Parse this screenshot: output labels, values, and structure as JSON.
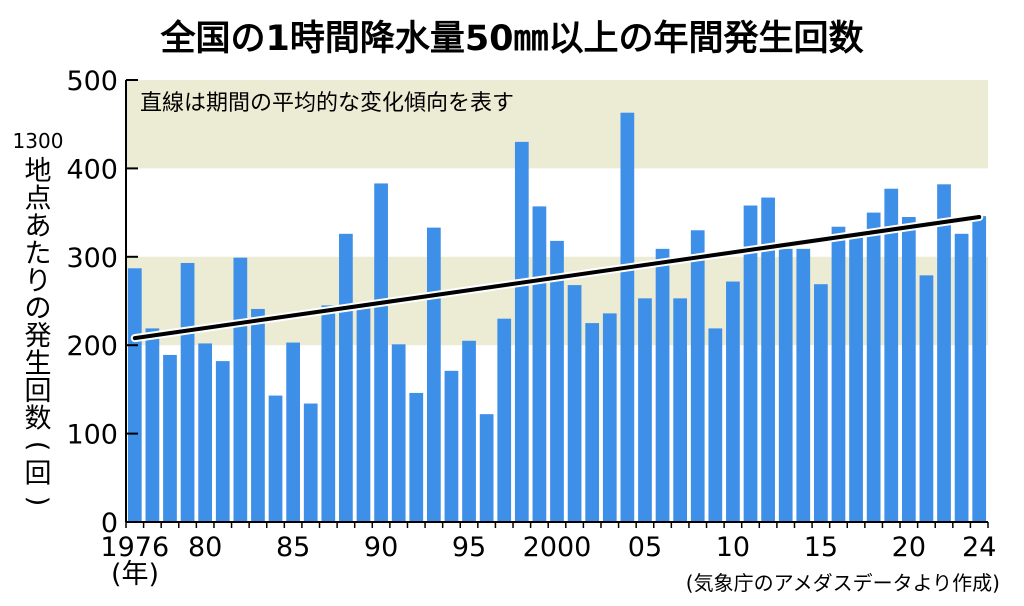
{
  "chart_data": {
    "type": "bar",
    "title": "全国の1時間降水量50㎜以上の年間発生回数",
    "ylabel_prefix": "1300",
    "ylabel_chars": [
      "地",
      "点",
      "あ",
      "た",
      "り",
      "の",
      "発",
      "生",
      "回",
      "数",
      "(",
      "回",
      ")"
    ],
    "xlabel": "(年)",
    "annotation": "直線は期間の平均的な変化傾向を表す",
    "source": "(気象庁のアメダスデータより作成)",
    "ylim": [
      0,
      500
    ],
    "yticks": [
      0,
      100,
      200,
      300,
      400,
      500
    ],
    "bands": [
      [
        200,
        300
      ],
      [
        400,
        500
      ]
    ],
    "x_tick_labels": [
      {
        "year": 1976,
        "label": "1976"
      },
      {
        "year": 1980,
        "label": "80"
      },
      {
        "year": 1985,
        "label": "85"
      },
      {
        "year": 1990,
        "label": "90"
      },
      {
        "year": 1995,
        "label": "95"
      },
      {
        "year": 2000,
        "label": "2000"
      },
      {
        "year": 2005,
        "label": "05"
      },
      {
        "year": 2010,
        "label": "10"
      },
      {
        "year": 2015,
        "label": "15"
      },
      {
        "year": 2020,
        "label": "20"
      },
      {
        "year": 2024,
        "label": "24"
      }
    ],
    "years": [
      1976,
      1977,
      1978,
      1979,
      1980,
      1981,
      1982,
      1983,
      1984,
      1985,
      1986,
      1987,
      1988,
      1989,
      1990,
      1991,
      1992,
      1993,
      1994,
      1995,
      1996,
      1997,
      1998,
      1999,
      2000,
      2001,
      2002,
      2003,
      2004,
      2005,
      2006,
      2007,
      2008,
      2009,
      2010,
      2011,
      2012,
      2013,
      2014,
      2015,
      2016,
      2017,
      2018,
      2019,
      2020,
      2021,
      2022,
      2023,
      2024
    ],
    "values": [
      287,
      219,
      189,
      293,
      202,
      182,
      299,
      241,
      143,
      203,
      134,
      245,
      326,
      243,
      383,
      201,
      146,
      333,
      171,
      205,
      122,
      230,
      430,
      357,
      318,
      268,
      225,
      236,
      463,
      253,
      309,
      253,
      330,
      219,
      272,
      358,
      367,
      309,
      309,
      269,
      334,
      325,
      350,
      377,
      345,
      279,
      382,
      326,
      346
    ],
    "trend": {
      "start": {
        "year": 1976,
        "value": 208
      },
      "end": {
        "year": 2024,
        "value": 345
      }
    },
    "colors": {
      "bar": "#3d8fe8",
      "band": "#ecebd3",
      "trend": "#000000",
      "axis": "#000000"
    }
  }
}
